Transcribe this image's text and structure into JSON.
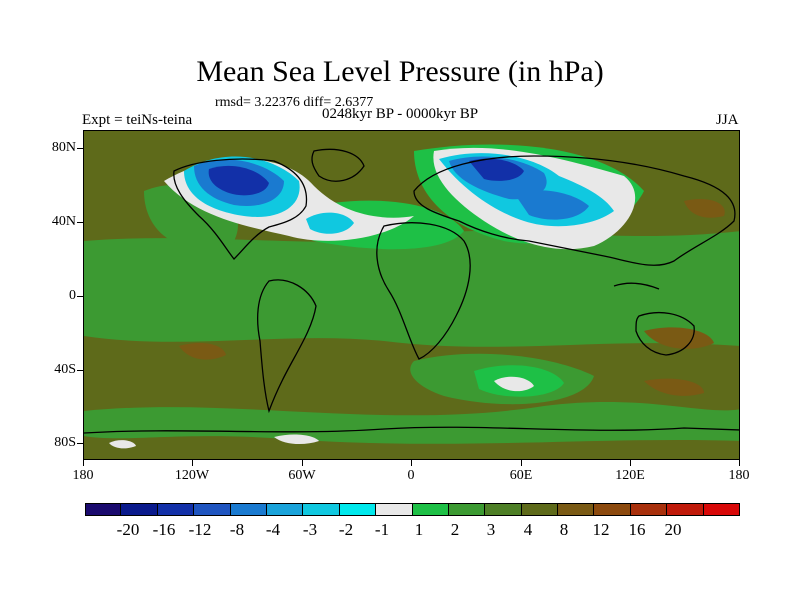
{
  "header": {
    "title": "Mean Sea Level Pressure (in hPa)",
    "stats": "rmsd= 3.22376 diff= 2.6377",
    "period": "0248kyr BP - 0000kyr BP",
    "experiment": "Expt = teiNs-teina",
    "season": "JJA"
  },
  "axes": {
    "y_labels": [
      "80N",
      "40N",
      "0",
      "40S",
      "80S"
    ],
    "x_labels": [
      "180",
      "120W",
      "60W",
      "0",
      "60E",
      "120E",
      "180"
    ]
  },
  "legend": {
    "colors": [
      "#1a0a6e",
      "#0a1a8c",
      "#1230a8",
      "#1f55c0",
      "#1a7ad0",
      "#1aa3da",
      "#10c8e0",
      "#00e8ec",
      "#e8e8e8",
      "#1ec046",
      "#3c9a32",
      "#4e7f26",
      "#5e6a1a",
      "#7a5a14",
      "#8c4a0e",
      "#a8300c",
      "#c01a0a",
      "#d80808"
    ],
    "labels": [
      "-20",
      "-16",
      "-12",
      "-8",
      "-4",
      "-3",
      "-2",
      "-1",
      "1",
      "2",
      "3",
      "4",
      "8",
      "12",
      "16",
      "20"
    ]
  },
  "map_colors": {
    "background": "#5e6a1a",
    "green_mid": "#3c9a32",
    "green_light": "#1ec046",
    "white": "#e8e8e8",
    "cyan": "#10c8e0",
    "blue_mid": "#1a7ad0",
    "blue_dark": "#1230a8",
    "brown": "#7a5a14",
    "coast": "#000000"
  }
}
